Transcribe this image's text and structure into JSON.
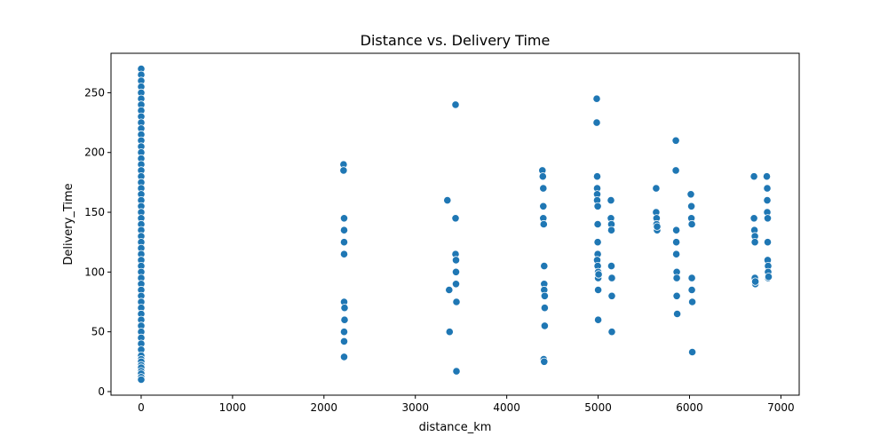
{
  "chart_data": {
    "type": "scatter",
    "title": "Distance vs. Delivery Time",
    "xlabel": "distance_km",
    "ylabel": "Delivery_Time",
    "xlim": [
      -330,
      7200
    ],
    "ylim": [
      -3,
      283
    ],
    "xticks": [
      0,
      1000,
      2000,
      3000,
      4000,
      5000,
      6000,
      7000
    ],
    "yticks": [
      0,
      50,
      100,
      150,
      200,
      250
    ],
    "grid": false,
    "marker_color": "#1f77b4",
    "x": [
      0,
      0,
      0,
      0,
      0,
      0,
      0,
      0,
      0,
      0,
      0,
      0,
      0,
      0,
      0,
      0,
      0,
      0,
      0,
      0,
      0,
      0,
      0,
      0,
      0,
      0,
      0,
      0,
      0,
      0,
      0,
      0,
      0,
      0,
      0,
      0,
      0,
      0,
      0,
      0,
      0,
      0,
      0,
      0,
      0,
      0,
      0,
      0,
      0,
      0,
      0,
      0,
      0,
      0,
      0,
      0,
      0,
      2215,
      2215,
      2220,
      2220,
      2220,
      2220,
      2220,
      2225,
      2225,
      2220,
      2220,
      2220,
      3350,
      3370,
      3375,
      3440,
      3440,
      3440,
      3445,
      3445,
      3445,
      3450,
      3450,
      4390,
      4395,
      4400,
      4400,
      4400,
      4405,
      4410,
      4410,
      4410,
      4415,
      4415,
      4415,
      4405,
      4410,
      4985,
      4985,
      4990,
      4990,
      4990,
      4990,
      4995,
      4995,
      4995,
      4995,
      4990,
      4995,
      5000,
      5000,
      5000,
      5000,
      5000,
      5005,
      5140,
      5140,
      5145,
      5145,
      5145,
      5150,
      5150,
      5150,
      5635,
      5635,
      5640,
      5640,
      5640,
      5645,
      5645,
      5850,
      5850,
      5855,
      5855,
      5855,
      5860,
      5860,
      5860,
      5865,
      6015,
      6020,
      6020,
      6025,
      6025,
      6025,
      6030,
      6030,
      6705,
      6705,
      6710,
      6715,
      6715,
      6715,
      6720,
      6720,
      6845,
      6850,
      6850,
      6850,
      6855,
      6855,
      6855,
      6860,
      6860,
      6860,
      6865
    ],
    "y": [
      270,
      265,
      260,
      255,
      250,
      245,
      240,
      235,
      230,
      225,
      220,
      215,
      210,
      205,
      200,
      195,
      190,
      185,
      180,
      175,
      170,
      165,
      160,
      155,
      150,
      145,
      140,
      135,
      130,
      125,
      120,
      115,
      110,
      105,
      100,
      95,
      90,
      85,
      80,
      75,
      70,
      65,
      60,
      55,
      50,
      45,
      40,
      35,
      30,
      27,
      25,
      22,
      20,
      17,
      15,
      12,
      10,
      190,
      185,
      145,
      135,
      125,
      115,
      75,
      70,
      60,
      50,
      42,
      29,
      160,
      85,
      50,
      240,
      145,
      115,
      110,
      100,
      90,
      75,
      17,
      185,
      180,
      170,
      155,
      145,
      140,
      105,
      90,
      85,
      80,
      70,
      55,
      27,
      25,
      245,
      225,
      180,
      170,
      165,
      160,
      155,
      140,
      125,
      115,
      110,
      105,
      100,
      95,
      85,
      60,
      100,
      98,
      160,
      145,
      140,
      135,
      105,
      95,
      80,
      50,
      170,
      150,
      145,
      140,
      135,
      135,
      138,
      210,
      185,
      135,
      125,
      115,
      100,
      95,
      80,
      65,
      165,
      155,
      145,
      140,
      95,
      85,
      75,
      33,
      180,
      145,
      135,
      130,
      125,
      95,
      90,
      92,
      180,
      170,
      160,
      150,
      145,
      125,
      110,
      105,
      100,
      95,
      96
    ]
  }
}
